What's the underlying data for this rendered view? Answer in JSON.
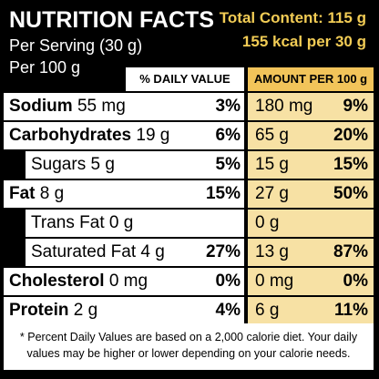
{
  "header": {
    "title": "NUTRITION FACTS",
    "serving": "Per Serving (30 g)",
    "per100": "Per 100 g",
    "total": "Total Content: 115 g",
    "kcal": "155 kcal per 30 g",
    "dv_heading": "% DAILY VALUE",
    "amount_heading": "AMOUNT PER 100 g"
  },
  "rows": [
    {
      "name": "Sodium",
      "amount": "55 mg",
      "dv": "3%",
      "amount100": "180 mg",
      "dv100": "9%"
    },
    {
      "name": "Carbohydrates",
      "amount": "19 g",
      "dv": "6%",
      "amount100": "65 g",
      "dv100": "20%"
    },
    {
      "name": "Sugars",
      "amount": "5 g",
      "dv": "5%",
      "amount100": "15 g",
      "dv100": "15%"
    },
    {
      "name": "Fat",
      "amount": "8 g",
      "dv": "15%",
      "amount100": "27 g",
      "dv100": "50%"
    },
    {
      "name": "Trans Fat",
      "amount": "0 g",
      "amount100": "0 g"
    },
    {
      "name": "Saturated Fat",
      "amount": "4 g",
      "dv": "27%",
      "amount100": "13 g",
      "dv100": "87%"
    },
    {
      "name": "Cholesterol",
      "amount": "0 mg",
      "dv": "0%",
      "amount100": "0 mg",
      "dv100": "0%"
    },
    {
      "name": "Protein",
      "amount": "2 g",
      "dv": "4%",
      "amount100": "6 g",
      "dv100": "11%"
    }
  ],
  "footnote": "* Percent Daily Values are based on a 2,000 calorie diet. Your daily values may be higher or lower depending on your calorie needs."
}
